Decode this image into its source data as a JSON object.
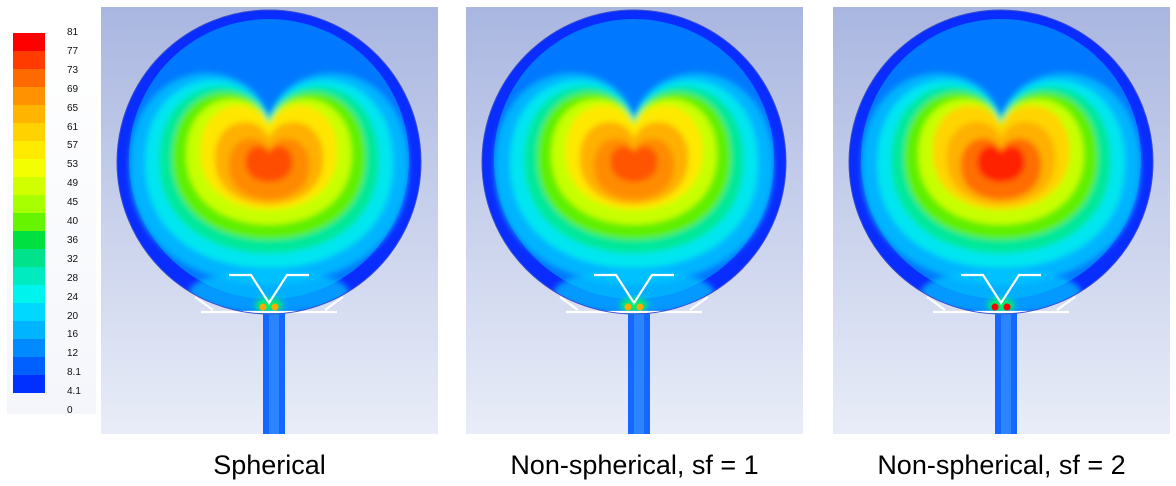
{
  "colorbar": {
    "ticks": [
      "81",
      "77",
      "73",
      "69",
      "65",
      "61",
      "57",
      "53",
      "49",
      "45",
      "40",
      "36",
      "32",
      "28",
      "24",
      "20",
      "16",
      "12",
      "8.1",
      "4.1",
      "0"
    ],
    "colors": [
      "#ff0000",
      "#ff3b00",
      "#ff6a00",
      "#ff9200",
      "#ffb400",
      "#ffd200",
      "#ffeb00",
      "#f3ff00",
      "#d2ff00",
      "#a8ff00",
      "#66f400",
      "#00e040",
      "#00e38c",
      "#00ebbf",
      "#00f4ee",
      "#00d8ff",
      "#00b4ff",
      "#008aff",
      "#0060ff",
      "#0030ff"
    ]
  },
  "panels": [
    {
      "caption": "Spherical",
      "core": "#ff4e00",
      "inner": "#ff8a00",
      "yellow": "#ffe600"
    },
    {
      "caption": "Non-spherical, sf = 1",
      "core": "#ff5400",
      "inner": "#ff8c00",
      "yellow": "#ffe800"
    },
    {
      "caption": "Non-spherical, sf = 2",
      "core": "#ff2000",
      "inner": "#ff6e00",
      "yellow": "#ffd400"
    }
  ]
}
